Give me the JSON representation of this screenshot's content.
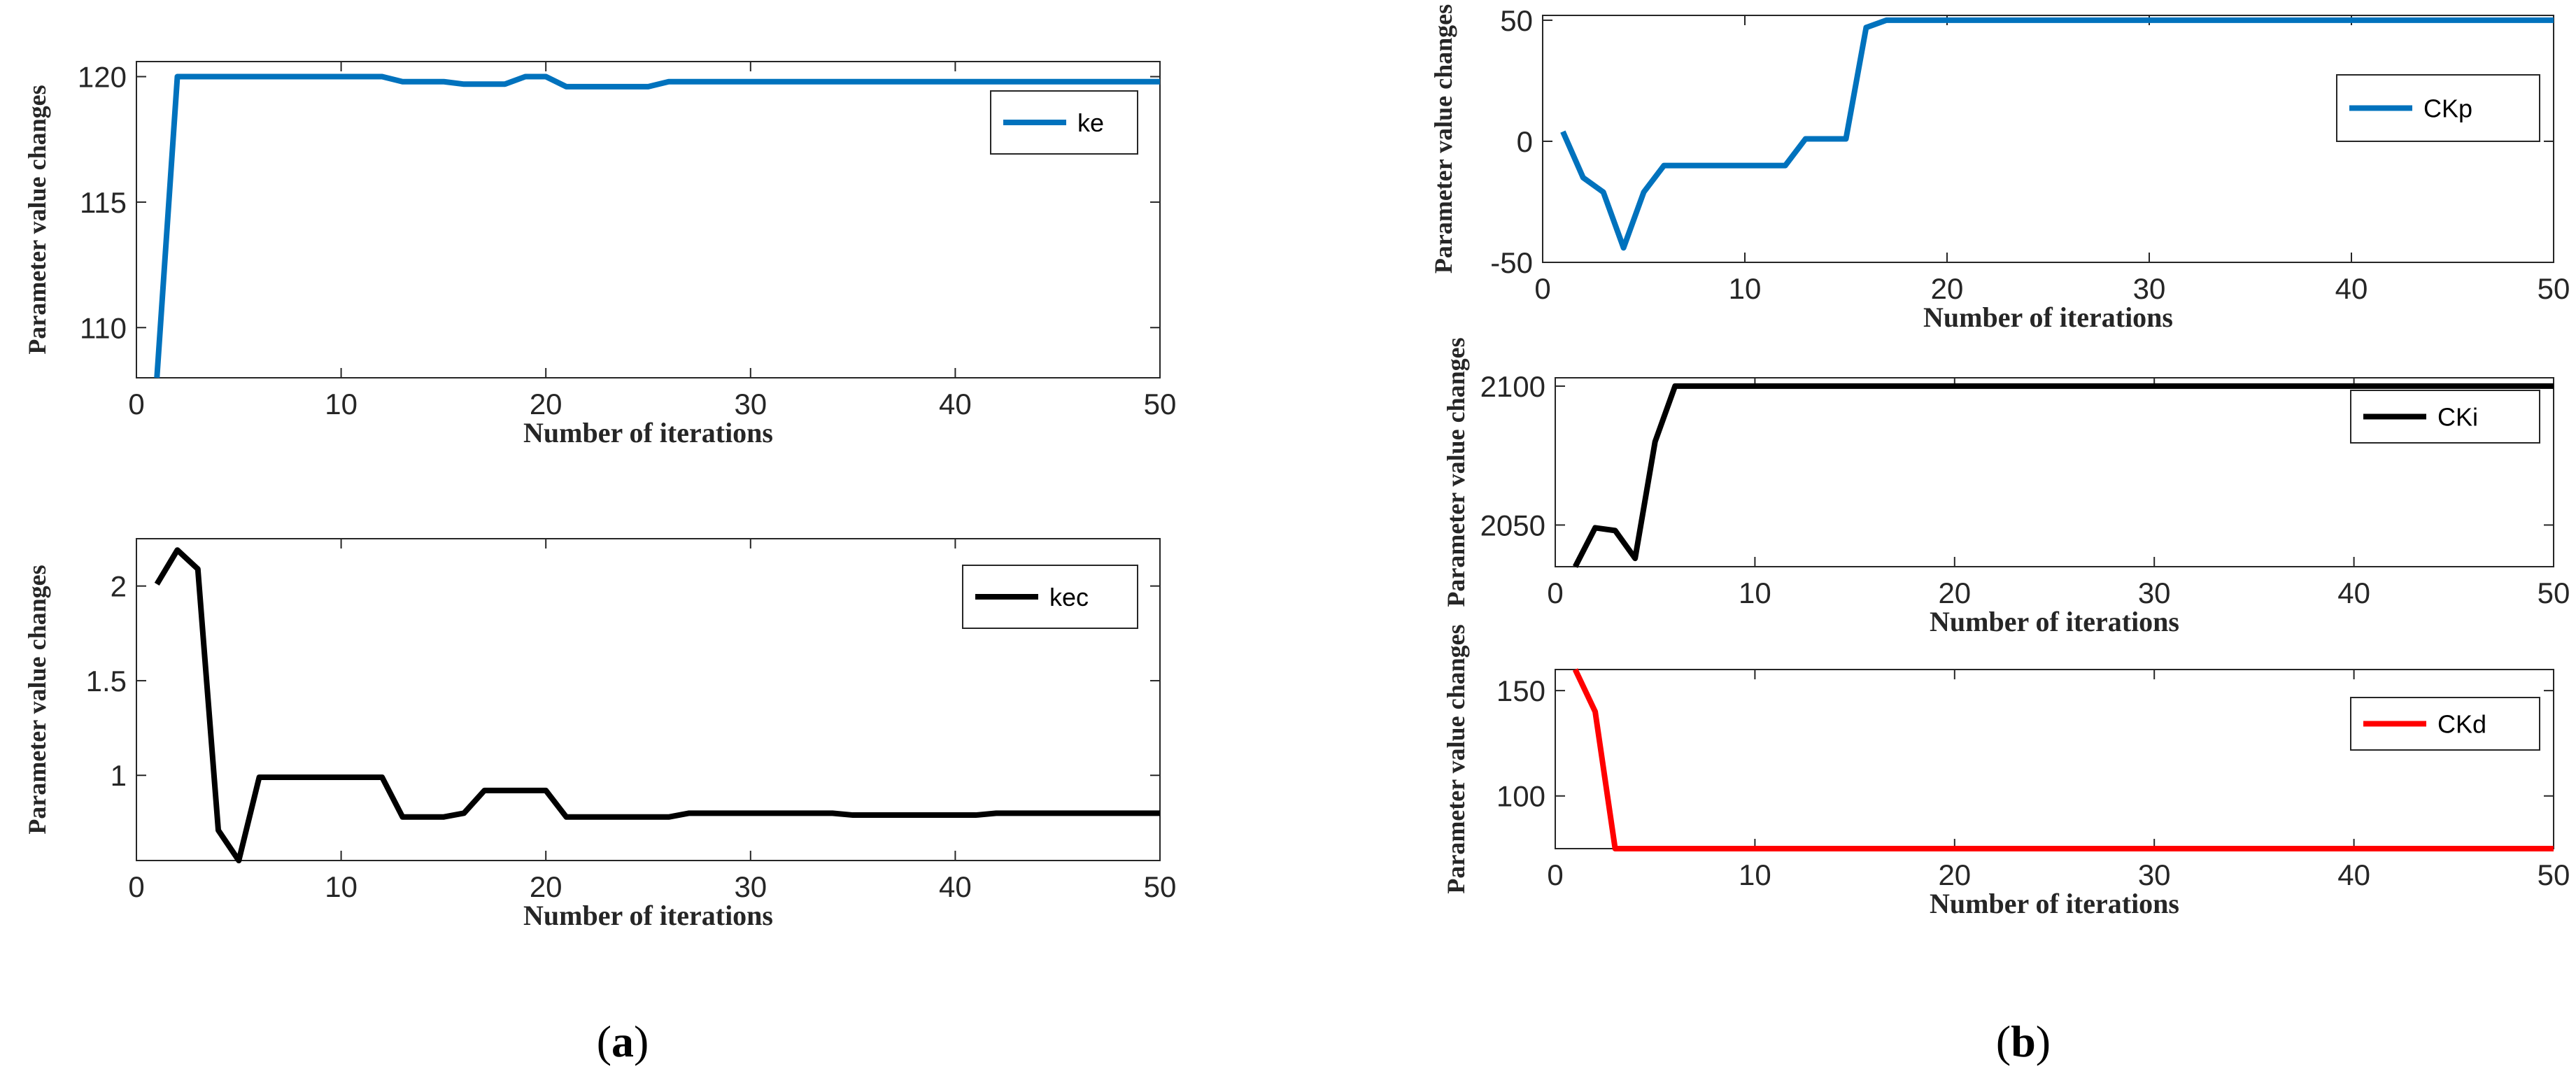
{
  "chart_data": [
    {
      "type": "line",
      "panel": "a",
      "xlabel": "Number of iterations",
      "ylabel": "Parameter value changes",
      "xlim": [
        0,
        50
      ],
      "ylim": [
        108,
        120.6
      ],
      "xticks": [
        0,
        10,
        20,
        30,
        40,
        50
      ],
      "yticks": [
        110,
        115,
        120
      ],
      "legend_position": "top-right",
      "grid": false,
      "series": [
        {
          "name": "ke",
          "color": "#0072BD",
          "x": [
            1,
            2,
            12,
            13,
            15,
            16,
            18,
            19,
            20,
            21,
            25,
            26,
            41,
            42,
            50
          ],
          "y": [
            108,
            120,
            120,
            119.8,
            119.8,
            119.7,
            119.7,
            120,
            120,
            119.6,
            119.6,
            119.8,
            119.8,
            119.8,
            119.8
          ]
        }
      ]
    },
    {
      "type": "line",
      "panel": "a",
      "xlabel": "Number of iterations",
      "ylabel": "Parameter value changes",
      "xlim": [
        0,
        50
      ],
      "ylim": [
        0.55,
        2.25
      ],
      "xticks": [
        0,
        10,
        20,
        30,
        40,
        50
      ],
      "yticks": [
        1,
        1.5,
        2
      ],
      "legend_position": "top-right",
      "grid": false,
      "series": [
        {
          "name": "kec",
          "color": "#000000",
          "x": [
            1,
            2,
            3,
            4,
            5,
            6,
            7,
            12,
            13,
            15,
            16,
            17,
            20,
            21,
            26,
            27,
            34,
            35,
            41,
            42,
            50
          ],
          "y": [
            2.01,
            2.19,
            2.09,
            0.71,
            0.55,
            0.99,
            0.99,
            0.99,
            0.78,
            0.78,
            0.8,
            0.92,
            0.92,
            0.78,
            0.78,
            0.8,
            0.8,
            0.79,
            0.79,
            0.8,
            0.8
          ]
        }
      ]
    },
    {
      "type": "line",
      "panel": "b",
      "xlabel": "Number of iterations",
      "ylabel": "Parameter value changes",
      "xlim": [
        0,
        50
      ],
      "ylim": [
        -50,
        52
      ],
      "xticks": [
        0,
        10,
        20,
        30,
        40,
        50
      ],
      "yticks": [
        -50,
        0,
        50
      ],
      "legend_position": "top-right",
      "grid": false,
      "series": [
        {
          "name": "CKp",
          "color": "#0072BD",
          "x": [
            1,
            2,
            3,
            4,
            5,
            6,
            12,
            13,
            15,
            16,
            17,
            50
          ],
          "y": [
            4,
            -15,
            -21,
            -44,
            -21,
            -10,
            -10,
            1,
            1,
            47,
            50,
            50
          ]
        }
      ]
    },
    {
      "type": "line",
      "panel": "b",
      "xlabel": "Number of iterations",
      "ylabel": "Parameter value changes",
      "xlim": [
        0,
        50
      ],
      "ylim": [
        2035,
        2103
      ],
      "xticks": [
        0,
        10,
        20,
        30,
        40,
        50
      ],
      "yticks": [
        2050,
        2100
      ],
      "legend_position": "top-right",
      "grid": false,
      "series": [
        {
          "name": "CKi",
          "color": "#000000",
          "x": [
            1,
            2,
            3,
            4,
            5,
            6,
            7,
            50
          ],
          "y": [
            2035,
            2049,
            2048,
            2038,
            2080,
            2100,
            2100,
            2100
          ]
        }
      ]
    },
    {
      "type": "line",
      "panel": "b",
      "xlabel": "Number of iterations",
      "ylabel": "Parameter value changes",
      "xlim": [
        0,
        50
      ],
      "ylim": [
        75,
        160
      ],
      "xticks": [
        0,
        10,
        20,
        30,
        40,
        50
      ],
      "yticks": [
        100,
        150
      ],
      "legend_position": "top-right",
      "grid": false,
      "series": [
        {
          "name": "CKd",
          "color": "#FF0000",
          "x": [
            1,
            2,
            3,
            4,
            50
          ],
          "y": [
            160,
            140,
            75,
            75,
            75
          ]
        }
      ]
    }
  ],
  "panel_labels": {
    "a": {
      "open": "(",
      "letter": "a",
      "close": ")"
    },
    "b": {
      "open": "(",
      "letter": "b",
      "close": ")"
    }
  }
}
